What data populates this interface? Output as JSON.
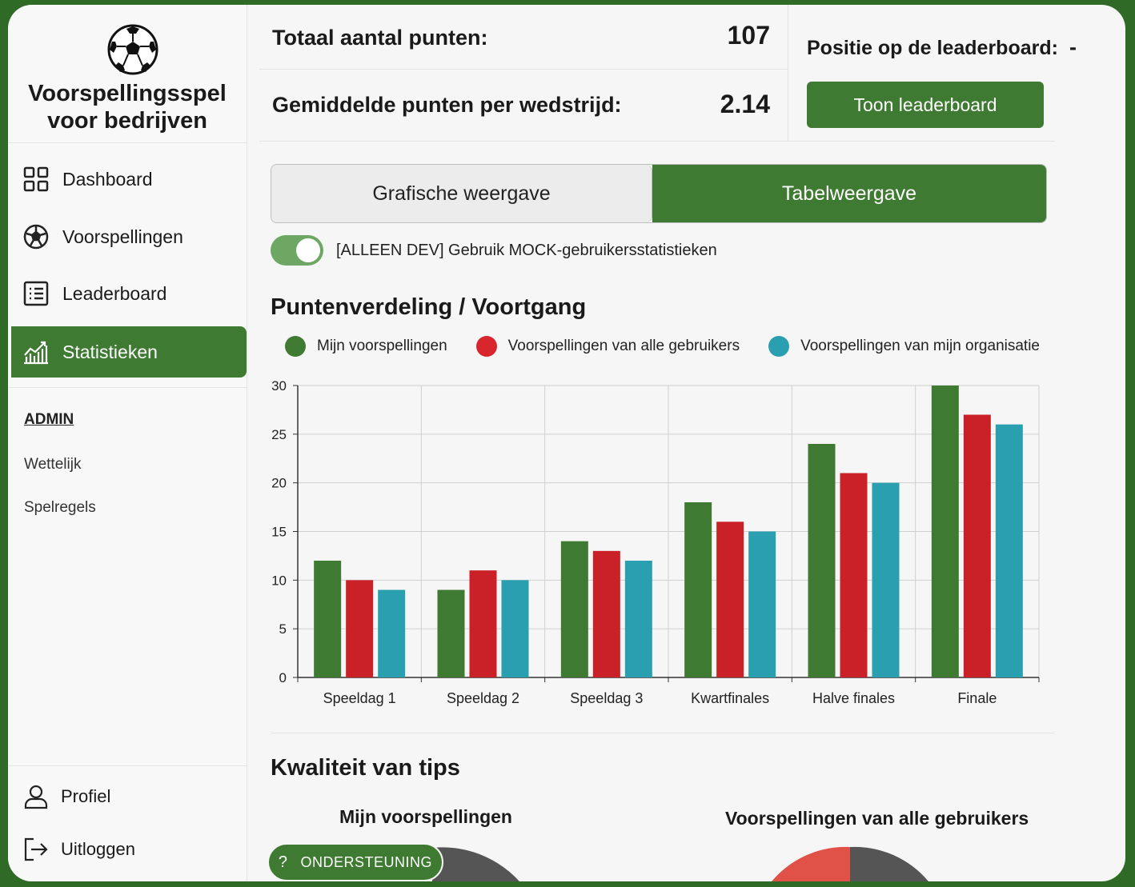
{
  "brand": {
    "title_line1": "Voorspellingsspel",
    "title_line2": "voor bedrijven",
    "logo_icon": "soccer-ball-icon"
  },
  "sidebar": {
    "items": [
      {
        "label": "Dashboard",
        "icon": "grid-icon",
        "active": false
      },
      {
        "label": "Voorspellingen",
        "icon": "soccer-ball-icon",
        "active": false
      },
      {
        "label": "Leaderboard",
        "icon": "list-icon",
        "active": false
      },
      {
        "label": "Statistieken",
        "icon": "chart-icon",
        "active": true
      }
    ],
    "admin": {
      "title": "ADMIN",
      "links": [
        "Wettelijk",
        "Spelregels"
      ]
    },
    "bottom": [
      {
        "label": "Profiel",
        "icon": "user-icon"
      },
      {
        "label": "Uitloggen",
        "icon": "logout-icon"
      }
    ]
  },
  "stats": {
    "total_label": "Totaal aantal punten:",
    "total_value": "107",
    "avg_label": "Gemiddelde punten per wedstrijd:",
    "avg_value": "2.14",
    "position_label": "Positie op de leaderboard:",
    "position_value": "-",
    "leaderboard_button": "Toon leaderboard"
  },
  "view_toggle": {
    "graphic": "Grafische weergave",
    "table": "Tabelweergave",
    "selected": "table"
  },
  "dev_switch": {
    "label": "[ALLEEN DEV] Gebruik MOCK-gebruikersstatistieken",
    "on": true
  },
  "section1_title": "Puntenverdeling / Voortgang",
  "section2_title": "Kwaliteit van tips",
  "chart_data": {
    "type": "bar",
    "categories": [
      "Speeldag 1",
      "Speeldag 2",
      "Speeldag 3",
      "Kwartfinales",
      "Halve finales",
      "Finale"
    ],
    "series": [
      {
        "name": "Mijn voorspellingen",
        "color": "#3e7a31",
        "values": [
          12,
          9,
          14,
          18,
          24,
          30
        ]
      },
      {
        "name": "Voorspellingen van alle gebruikers",
        "color": "#c92127",
        "values": [
          10,
          11,
          13,
          16,
          21,
          27
        ]
      },
      {
        "name": "Voorspellingen van mijn organisatie",
        "color": "#2a9fb0",
        "values": [
          9,
          10,
          12,
          15,
          20,
          26
        ]
      }
    ],
    "ylim": [
      0,
      30
    ],
    "yticks": [
      0,
      5,
      10,
      15,
      20,
      25,
      30
    ],
    "grid": true,
    "legend": "top"
  },
  "pies": {
    "left_title": "Mijn voorspellingen",
    "right_title": "Voorspellingen van alle gebruikers"
  },
  "support_button": {
    "label": "ONDERSTEUNING",
    "icon": "question-icon"
  }
}
